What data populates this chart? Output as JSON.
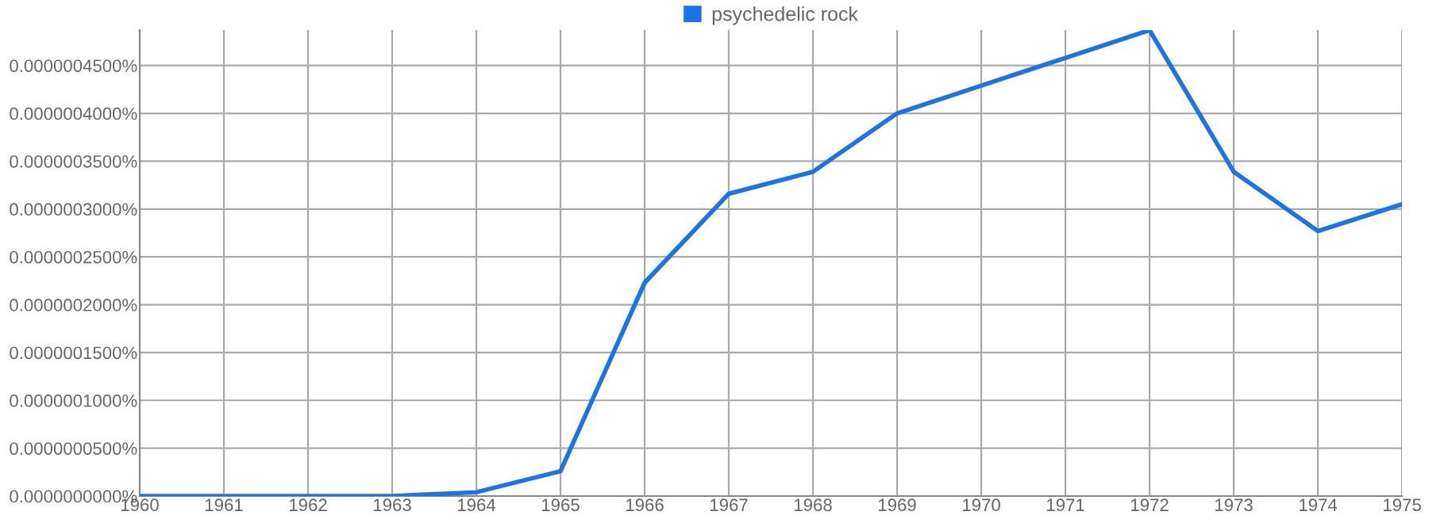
{
  "chart_data": {
    "type": "line",
    "x": [
      1960,
      1961,
      1962,
      1963,
      1964,
      1965,
      1966,
      1967,
      1968,
      1969,
      1970,
      1971,
      1972,
      1973,
      1974,
      1975
    ],
    "series": [
      {
        "name": "psychedelic rock",
        "color": "#1a73e8",
        "values": [
          0,
          0,
          0,
          0,
          4e-09,
          2.6e-08,
          2.23e-07,
          3.16e-07,
          3.39e-07,
          4e-07,
          4.29e-07,
          4.58e-07,
          4.87e-07,
          3.39e-07,
          2.77e-07,
          3.05e-07
        ]
      }
    ],
    "xlim": [
      1960,
      1975
    ],
    "xticks": [
      1960,
      1961,
      1962,
      1963,
      1964,
      1965,
      1966,
      1967,
      1968,
      1969,
      1970,
      1971,
      1972,
      1973,
      1974,
      1975
    ],
    "ylim": [
      0,
      4.87e-07
    ],
    "yticks": [
      {
        "value": 0,
        "label": "0.0000000000%"
      },
      {
        "value": 5e-08,
        "label": "0.0000000500%"
      },
      {
        "value": 1e-07,
        "label": "0.0000001000%"
      },
      {
        "value": 1.5e-07,
        "label": "0.0000001500%"
      },
      {
        "value": 2e-07,
        "label": "0.0000002000%"
      },
      {
        "value": 2.5e-07,
        "label": "0.0000002500%"
      },
      {
        "value": 3e-07,
        "label": "0.0000003000%"
      },
      {
        "value": 3.5e-07,
        "label": "0.0000003500%"
      },
      {
        "value": 4e-07,
        "label": "0.0000004000%"
      },
      {
        "value": 4.5e-07,
        "label": "0.0000004500%"
      }
    ],
    "grid": true,
    "legend": "top",
    "marker": "none",
    "line_style": "solid"
  }
}
